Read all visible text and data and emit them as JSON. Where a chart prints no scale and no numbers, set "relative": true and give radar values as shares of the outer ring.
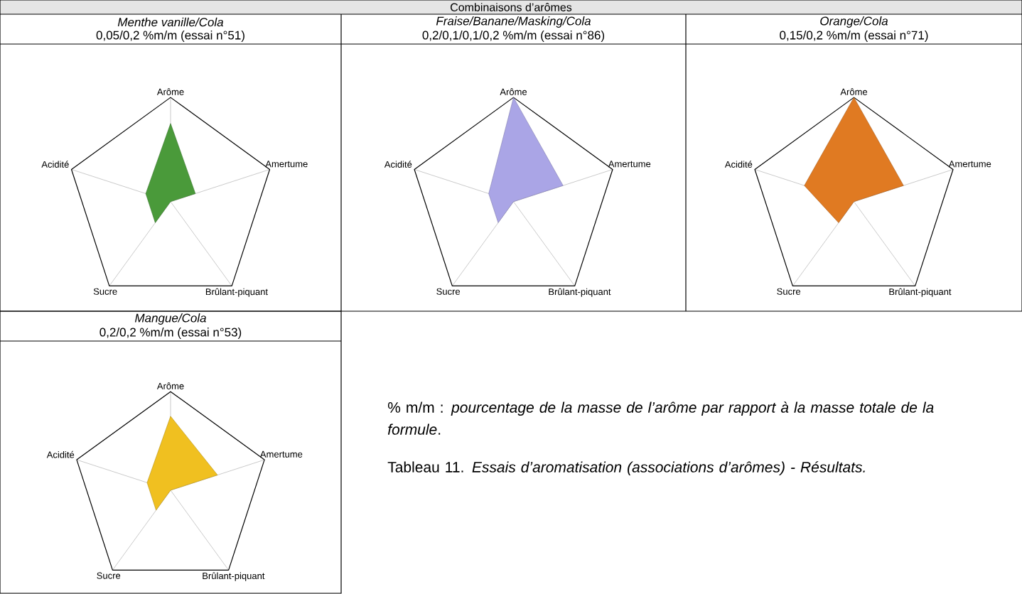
{
  "chart_data": [
    {
      "type": "radar",
      "title": "Menthe vanille/Cola",
      "subtitle": "0,05/0,2 %m/m (essai n°51)",
      "categories": [
        "Arôme",
        "Amertume",
        "Brûlant-piquant",
        "Sucre",
        "Acidité"
      ],
      "relative": true,
      "series": [
        {
          "color": "#4a9a3a",
          "values": [
            0.75,
            0.25,
            0,
            0.25,
            0.25
          ]
        }
      ]
    },
    {
      "type": "radar",
      "title": "Fraise/Banane/Masking/Cola",
      "subtitle": "0,2/0,1/0,1/0,2 %m/m (essai n°86)",
      "categories": [
        "Arôme",
        "Amertume",
        "Brûlant-piquant",
        "Sucre",
        "Acidité"
      ],
      "relative": true,
      "series": [
        {
          "color": "#aaa5e6",
          "values": [
            1,
            0.5,
            0,
            0.25,
            0.25
          ]
        }
      ]
    },
    {
      "type": "radar",
      "title": "Orange/Cola",
      "subtitle": "0,15/0,2 %m/m (essai n°71)",
      "categories": [
        "Arôme",
        "Amertume",
        "Brûlant-piquant",
        "Sucre",
        "Acidité"
      ],
      "relative": true,
      "series": [
        {
          "color": "#e07a22",
          "values": [
            1,
            0.5,
            0,
            0.25,
            0.5
          ]
        }
      ]
    },
    {
      "type": "radar",
      "title": "Mangue/Cola",
      "subtitle": "0,2/0,2 %m/m (essai n°53)",
      "categories": [
        "Arôme",
        "Amertume",
        "Brûlant-piquant",
        "Sucre",
        "Acidité"
      ],
      "relative": true,
      "series": [
        {
          "color": "#f0c020",
          "values": [
            0.75,
            0.5,
            0,
            0.25,
            0.25
          ]
        }
      ]
    },
    {
      "type": "other",
      "title": "Combinaisons d’arômes",
      "annotations": [
        "% m/m : *pourcentage de la masse de l’arôme par rapport à la masse totale de la formule*.",
        "Tableau 11. *Essais d’aromatisation (associations d’arômes) - Résultats.*"
      ]
    }
  ]
}
